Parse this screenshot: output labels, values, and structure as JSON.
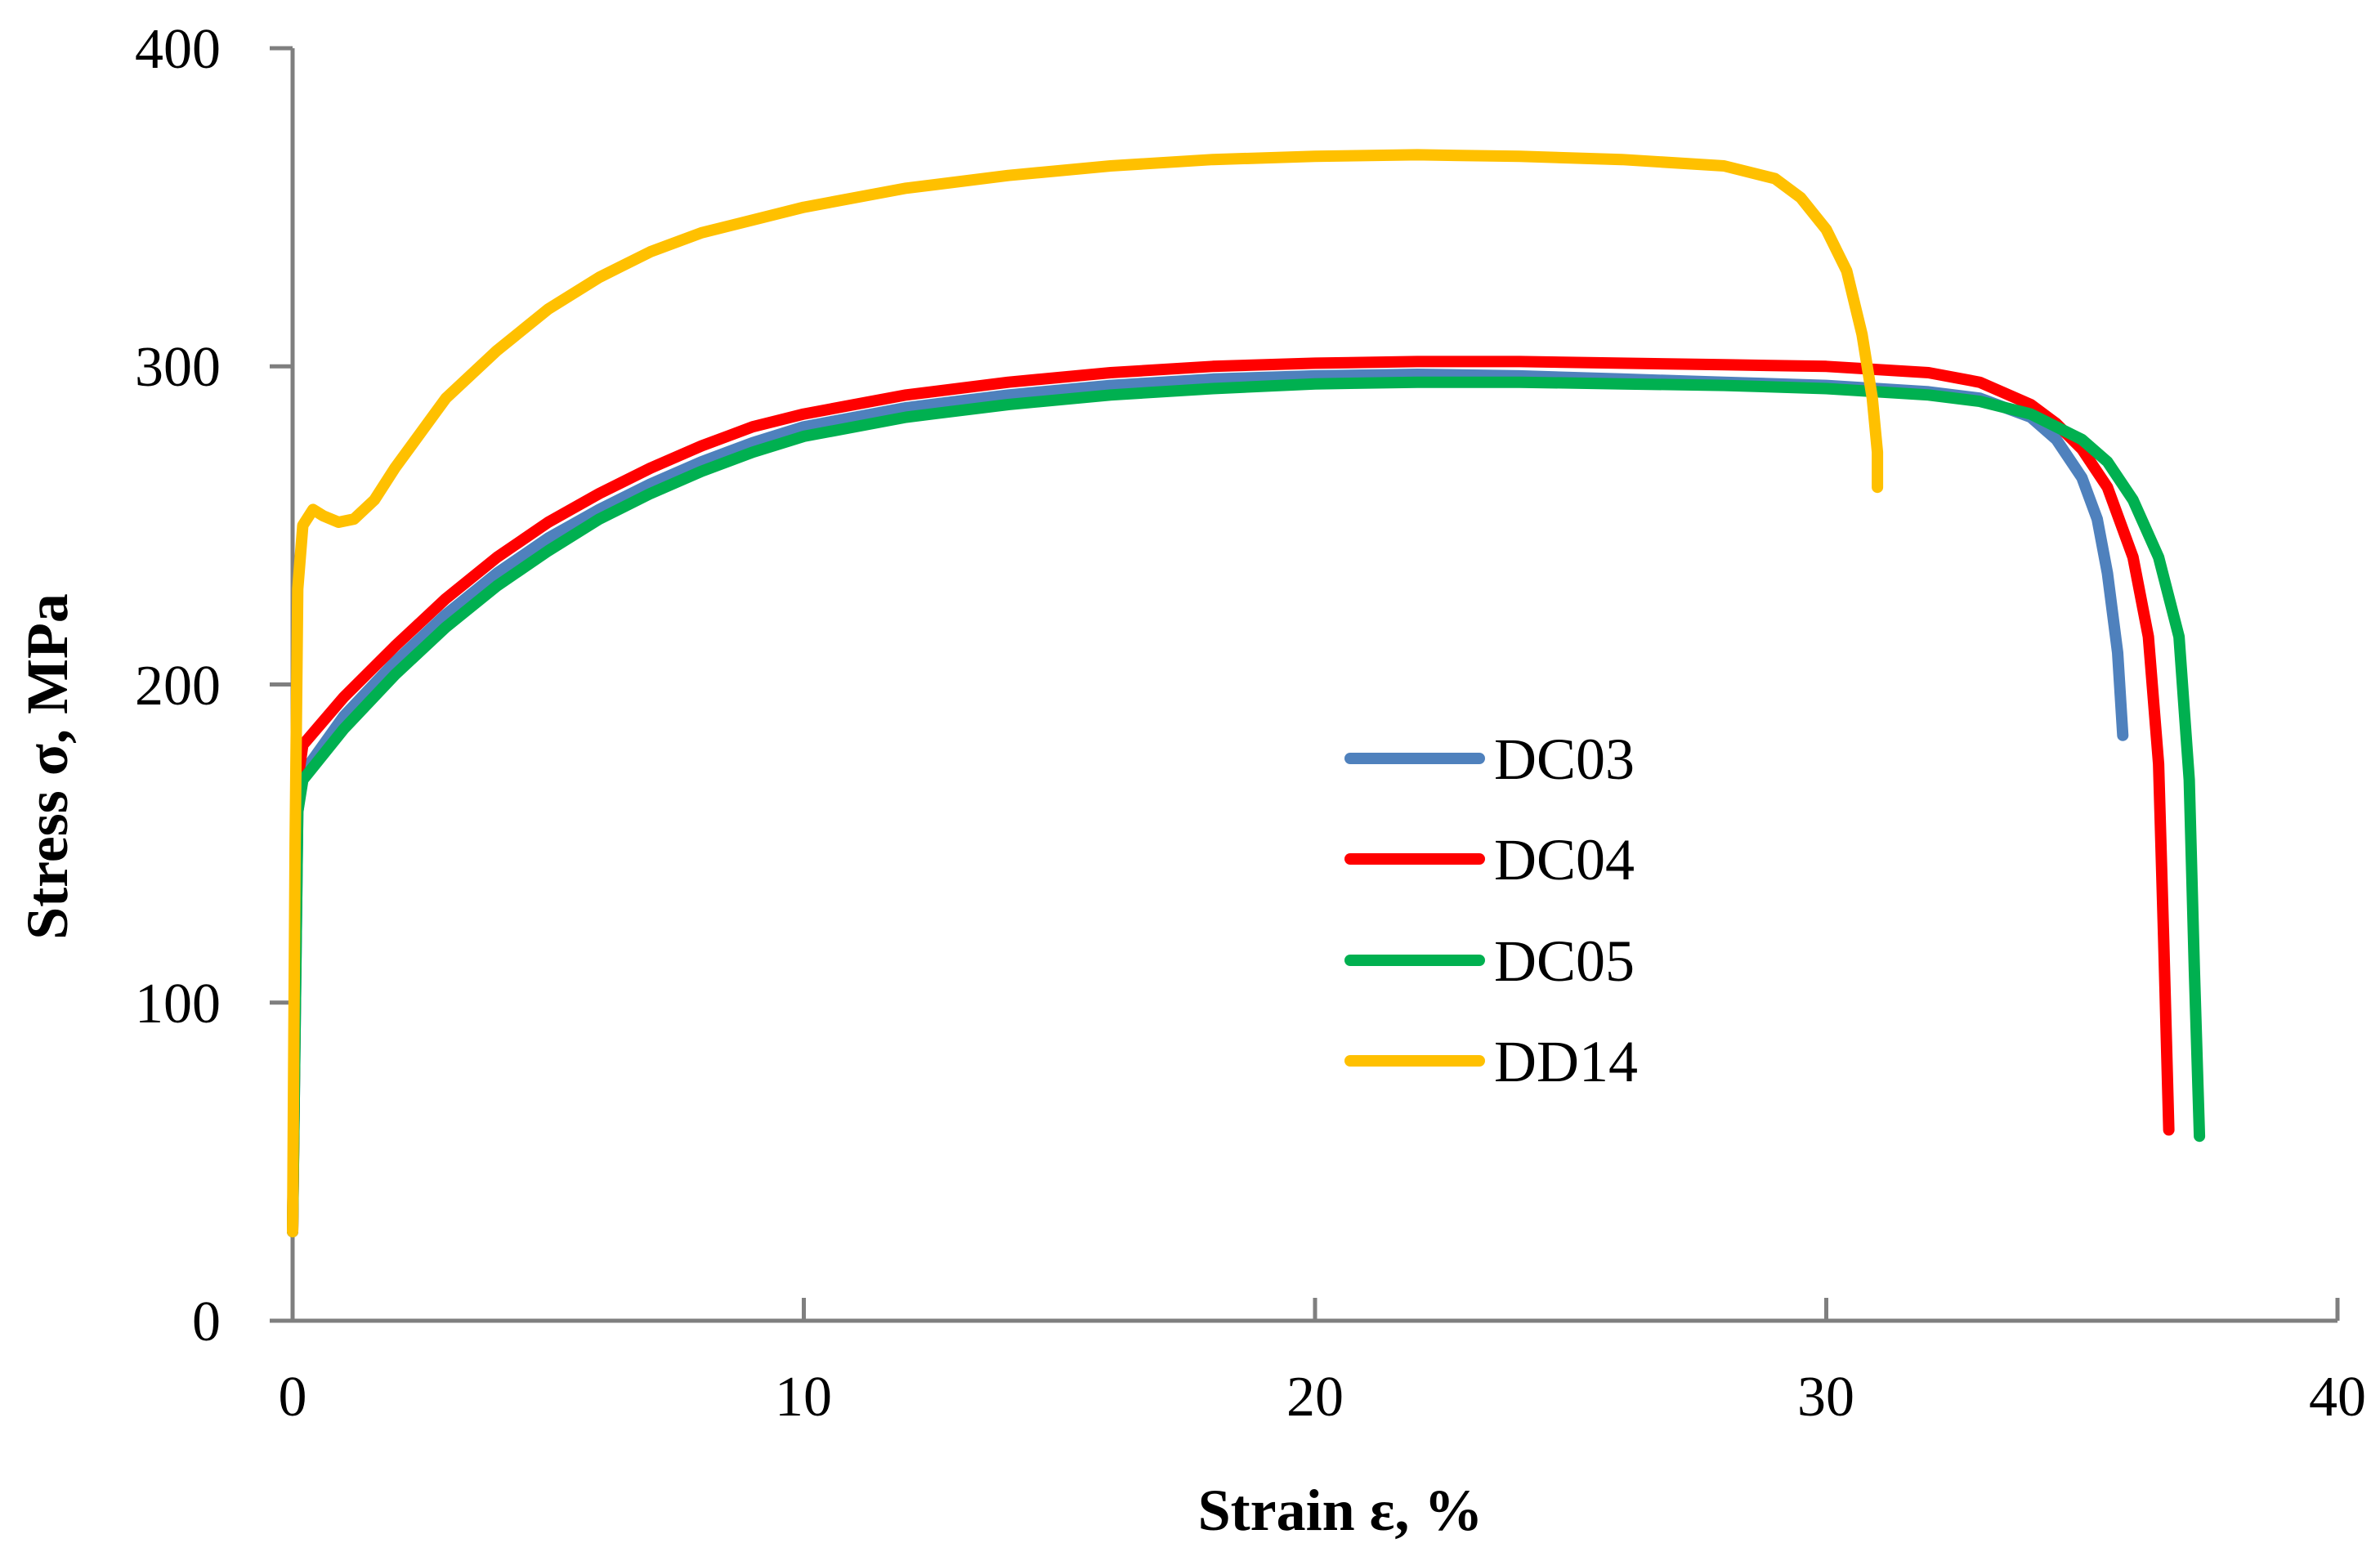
{
  "chart_data": {
    "type": "line",
    "title": "",
    "xlabel": "Strain ε, %",
    "ylabel": "Stress σ, MPa",
    "xlim": [
      0,
      40
    ],
    "ylim": [
      0,
      400
    ],
    "xticks": [
      0,
      10,
      20,
      30,
      40
    ],
    "yticks": [
      0,
      100,
      200,
      300,
      400
    ],
    "xtick_labels": [
      "0",
      "10",
      "20",
      "30",
      "40"
    ],
    "ytick_labels": [
      "0",
      "100",
      "200",
      "300",
      "400"
    ],
    "grid": false,
    "legend_position": "center-right",
    "series": [
      {
        "name": "DC03",
        "color": "#4F81BD",
        "points": [
          [
            0,
            28
          ],
          [
            0.1,
            160
          ],
          [
            0.2,
            172
          ],
          [
            1,
            190
          ],
          [
            2,
            207
          ],
          [
            3,
            222
          ],
          [
            4,
            235
          ],
          [
            5,
            246
          ],
          [
            6,
            255
          ],
          [
            7,
            263
          ],
          [
            8,
            270
          ],
          [
            9,
            276
          ],
          [
            10,
            281
          ],
          [
            12,
            287
          ],
          [
            14,
            291
          ],
          [
            16,
            294
          ],
          [
            18,
            296
          ],
          [
            20,
            297
          ],
          [
            22,
            297.5
          ],
          [
            24,
            297
          ],
          [
            26,
            296
          ],
          [
            28,
            295
          ],
          [
            30,
            294
          ],
          [
            32,
            292
          ],
          [
            33,
            290
          ],
          [
            34,
            284
          ],
          [
            34.5,
            277
          ],
          [
            35,
            265
          ],
          [
            35.3,
            252
          ],
          [
            35.5,
            235
          ],
          [
            35.7,
            210
          ],
          [
            35.8,
            184
          ]
        ]
      },
      {
        "name": "DC04",
        "color": "#FF0000",
        "points": [
          [
            0,
            28
          ],
          [
            0.1,
            170
          ],
          [
            0.2,
            181
          ],
          [
            1,
            196
          ],
          [
            2,
            212
          ],
          [
            3,
            227
          ],
          [
            4,
            240
          ],
          [
            5,
            251
          ],
          [
            6,
            260
          ],
          [
            7,
            268
          ],
          [
            8,
            275
          ],
          [
            9,
            281
          ],
          [
            10,
            285
          ],
          [
            12,
            291
          ],
          [
            14,
            295
          ],
          [
            16,
            298
          ],
          [
            18,
            300
          ],
          [
            20,
            301
          ],
          [
            22,
            301.5
          ],
          [
            24,
            301.5
          ],
          [
            26,
            301
          ],
          [
            28,
            300.5
          ],
          [
            30,
            300
          ],
          [
            32,
            298
          ],
          [
            33,
            295
          ],
          [
            34,
            288
          ],
          [
            34.5,
            282
          ],
          [
            35,
            274
          ],
          [
            35.5,
            262
          ],
          [
            36,
            240
          ],
          [
            36.3,
            215
          ],
          [
            36.5,
            175
          ],
          [
            36.6,
            120
          ],
          [
            36.7,
            60
          ]
        ]
      },
      {
        "name": "DC05",
        "color": "#00B050",
        "points": [
          [
            0,
            28
          ],
          [
            0.1,
            160
          ],
          [
            0.2,
            170
          ],
          [
            1,
            186
          ],
          [
            2,
            203
          ],
          [
            3,
            218
          ],
          [
            4,
            231
          ],
          [
            5,
            242
          ],
          [
            6,
            252
          ],
          [
            7,
            260
          ],
          [
            8,
            267
          ],
          [
            9,
            273
          ],
          [
            10,
            278
          ],
          [
            12,
            284
          ],
          [
            14,
            288
          ],
          [
            16,
            291
          ],
          [
            18,
            293
          ],
          [
            20,
            294.5
          ],
          [
            22,
            295
          ],
          [
            24,
            295
          ],
          [
            26,
            294.5
          ],
          [
            28,
            294
          ],
          [
            30,
            293
          ],
          [
            32,
            291
          ],
          [
            33,
            289
          ],
          [
            34,
            285
          ],
          [
            35,
            277
          ],
          [
            35.5,
            270
          ],
          [
            36,
            258
          ],
          [
            36.5,
            240
          ],
          [
            36.9,
            215
          ],
          [
            37.1,
            170
          ],
          [
            37.2,
            110
          ],
          [
            37.3,
            58
          ]
        ]
      },
      {
        "name": "DD14",
        "color": "#FFC000",
        "points": [
          [
            0,
            28
          ],
          [
            0.05,
            150
          ],
          [
            0.1,
            230
          ],
          [
            0.2,
            250
          ],
          [
            0.4,
            255
          ],
          [
            0.6,
            253
          ],
          [
            0.9,
            251
          ],
          [
            1.2,
            252
          ],
          [
            1.6,
            258
          ],
          [
            2,
            268
          ],
          [
            3,
            290
          ],
          [
            4,
            305
          ],
          [
            5,
            318
          ],
          [
            6,
            328
          ],
          [
            7,
            336
          ],
          [
            8,
            342
          ],
          [
            10,
            350
          ],
          [
            12,
            356
          ],
          [
            14,
            360
          ],
          [
            16,
            363
          ],
          [
            18,
            365
          ],
          [
            20,
            366
          ],
          [
            22,
            366.5
          ],
          [
            24,
            366
          ],
          [
            26,
            365
          ],
          [
            28,
            363
          ],
          [
            29,
            359
          ],
          [
            29.5,
            353
          ],
          [
            30,
            343
          ],
          [
            30.4,
            330
          ],
          [
            30.7,
            310
          ],
          [
            30.9,
            290
          ],
          [
            31,
            273
          ],
          [
            31,
            262
          ]
        ]
      }
    ]
  }
}
